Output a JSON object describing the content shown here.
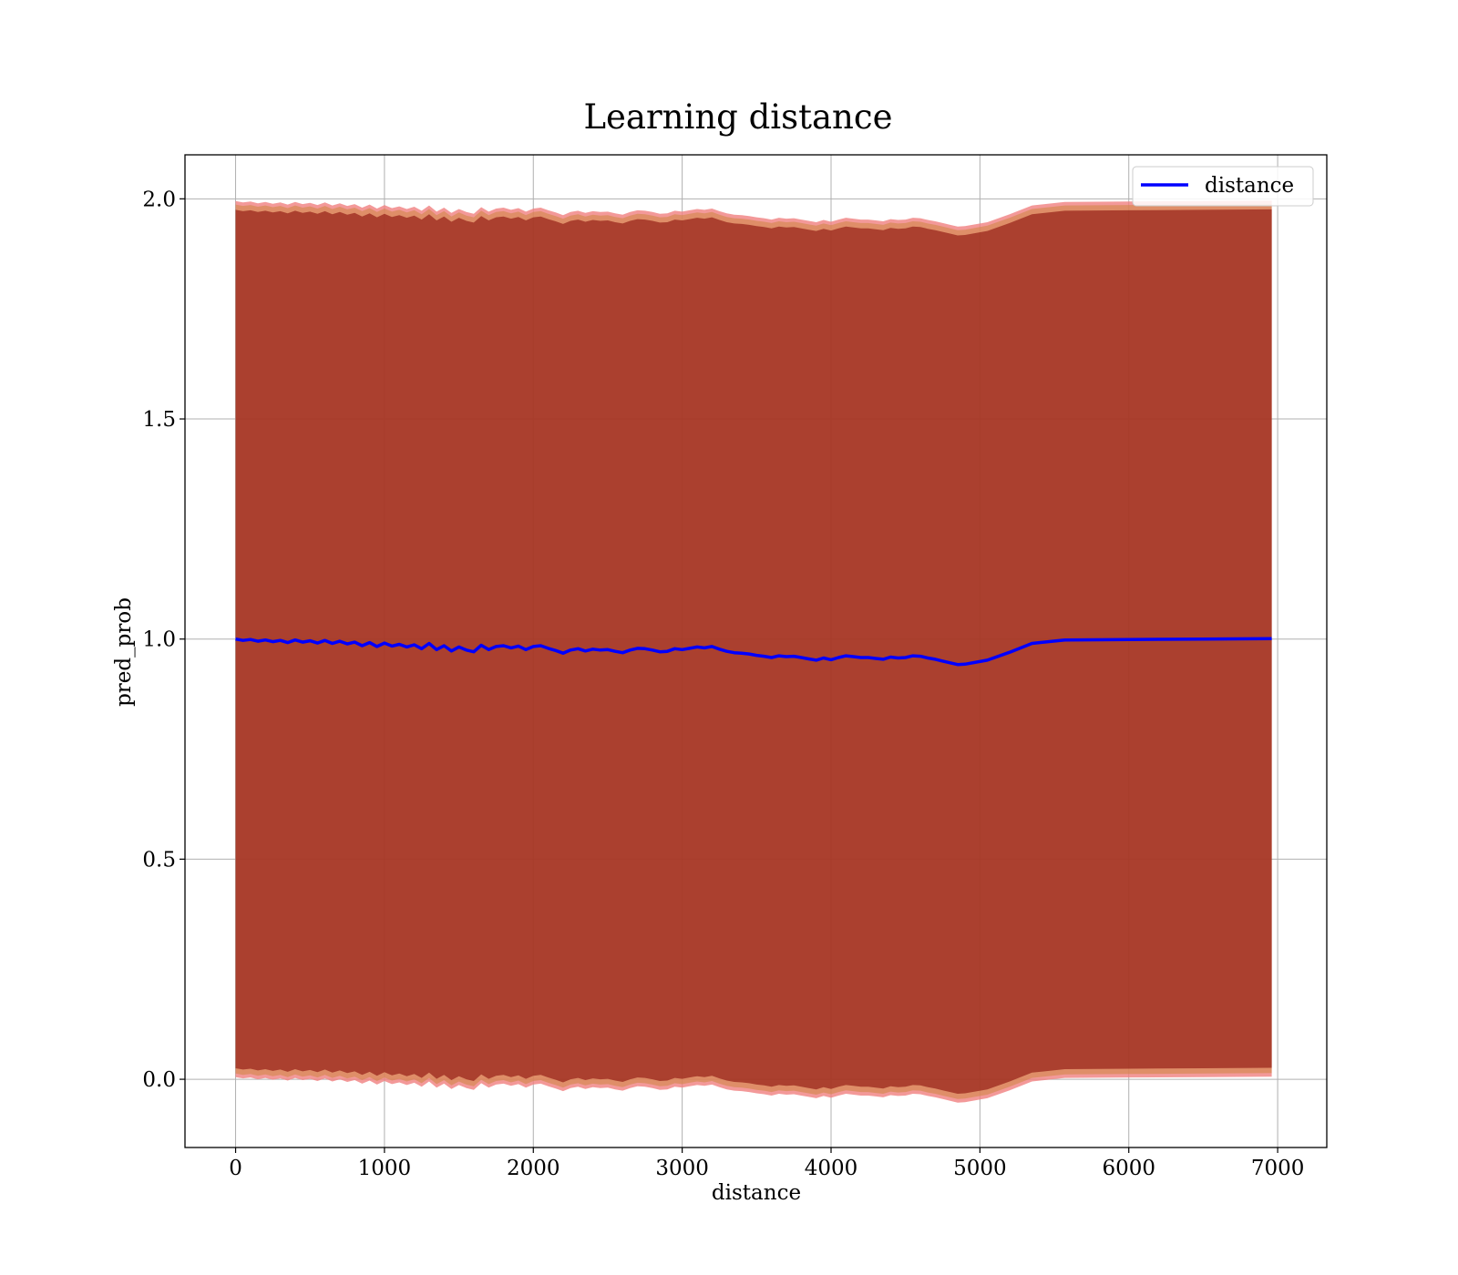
{
  "chart_data": {
    "type": "line",
    "title": "Learning distance",
    "xlabel": "distance",
    "ylabel": "pred_prob",
    "xlim": [
      -340,
      7330
    ],
    "ylim": [
      -0.155,
      2.1
    ],
    "xticks": [
      0,
      1000,
      2000,
      3000,
      4000,
      5000,
      6000,
      7000
    ],
    "xtick_labels": [
      "0",
      "1000",
      "2000",
      "3000",
      "4000",
      "5000",
      "6000",
      "7000"
    ],
    "yticks": [
      0.0,
      0.5,
      1.0,
      1.5,
      2.0
    ],
    "ytick_labels": [
      "0.0",
      "0.5",
      "1.0",
      "1.5",
      "2.0"
    ],
    "grid": true,
    "legend": {
      "position": "upper right",
      "entries": [
        "distance"
      ]
    },
    "colors": {
      "line": "#0000ff",
      "band_outer": "#f08080",
      "band_inner": "#800000",
      "band_mid": "#cd853f"
    },
    "series": [
      {
        "name": "distance",
        "x": [
          0,
          50,
          100,
          150,
          200,
          250,
          300,
          350,
          400,
          450,
          500,
          550,
          600,
          650,
          700,
          750,
          800,
          850,
          900,
          950,
          1000,
          1050,
          1100,
          1150,
          1200,
          1250,
          1300,
          1350,
          1400,
          1450,
          1500,
          1550,
          1600,
          1650,
          1700,
          1750,
          1800,
          1850,
          1900,
          1950,
          2000,
          2050,
          2100,
          2150,
          2200,
          2250,
          2300,
          2350,
          2400,
          2450,
          2500,
          2550,
          2600,
          2650,
          2700,
          2750,
          2800,
          2850,
          2900,
          2950,
          3000,
          3050,
          3100,
          3150,
          3200,
          3250,
          3300,
          3350,
          3400,
          3450,
          3500,
          3550,
          3600,
          3650,
          3700,
          3750,
          3800,
          3850,
          3900,
          3950,
          4000,
          4050,
          4100,
          4150,
          4200,
          4250,
          4300,
          4350,
          4400,
          4450,
          4500,
          4550,
          4600,
          4650,
          4700,
          4750,
          4800,
          4850,
          4900,
          5050,
          5200,
          5350,
          5570,
          6000,
          6500,
          6960
        ],
        "values": [
          1.0,
          0.997,
          0.999,
          0.995,
          0.998,
          0.994,
          0.997,
          0.992,
          0.998,
          0.993,
          0.996,
          0.991,
          0.997,
          0.99,
          0.995,
          0.989,
          0.993,
          0.985,
          0.992,
          0.983,
          0.991,
          0.984,
          0.988,
          0.982,
          0.987,
          0.978,
          0.99,
          0.976,
          0.985,
          0.973,
          0.982,
          0.975,
          0.971,
          0.986,
          0.976,
          0.983,
          0.985,
          0.98,
          0.984,
          0.976,
          0.983,
          0.985,
          0.979,
          0.974,
          0.968,
          0.975,
          0.978,
          0.973,
          0.977,
          0.975,
          0.976,
          0.972,
          0.969,
          0.975,
          0.979,
          0.978,
          0.975,
          0.971,
          0.972,
          0.978,
          0.976,
          0.979,
          0.982,
          0.98,
          0.983,
          0.977,
          0.972,
          0.969,
          0.968,
          0.966,
          0.963,
          0.961,
          0.958,
          0.962,
          0.96,
          0.961,
          0.958,
          0.955,
          0.952,
          0.957,
          0.953,
          0.958,
          0.962,
          0.96,
          0.958,
          0.958,
          0.956,
          0.954,
          0.959,
          0.957,
          0.958,
          0.962,
          0.961,
          0.957,
          0.954,
          0.95,
          0.946,
          0.942,
          0.943,
          0.952,
          0.97,
          0.99,
          0.998,
          0.999,
          1.0,
          1.001
        ],
        "band_inner_halfwidth": 0.975,
        "band_outer_halfwidth": 0.995
      }
    ]
  }
}
